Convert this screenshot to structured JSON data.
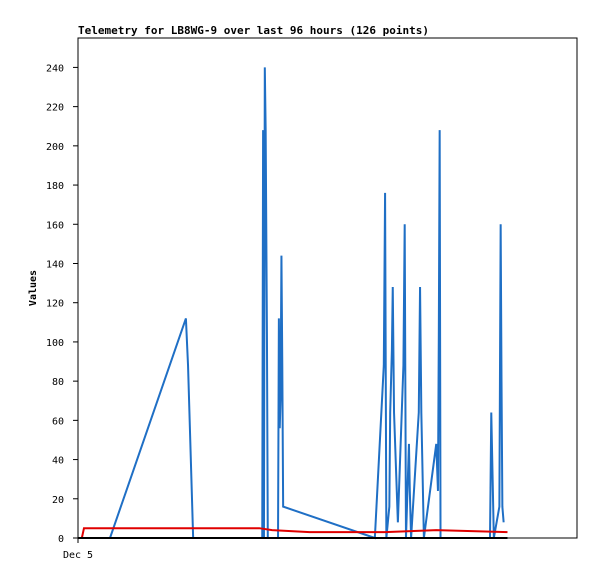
{
  "chart_data": {
    "type": "line",
    "title": "Telemetry for LB8WG-9 over last 96 hours (126 points)",
    "y_label": "Values",
    "xlim": [
      0,
      117
    ],
    "xticks": [
      {
        "value": 0,
        "label": "Dec 5"
      }
    ],
    "ylim": [
      0,
      255
    ],
    "yticks": [
      0,
      20,
      40,
      60,
      80,
      100,
      120,
      140,
      160,
      180,
      200,
      220,
      240
    ],
    "series": [
      {
        "color": "#1f6fc5",
        "x": [
          7.5,
          25.3,
          25.8,
          27.0,
          43.2,
          43.4,
          43.6,
          43.8,
          44.0,
          44.3,
          44.5,
          46.9,
          47.1,
          47.3,
          47.5,
          47.7,
          47.9,
          48.1,
          69.6,
          71.7,
          72.0,
          72.3,
          73.0,
          73.2,
          73.6,
          73.8,
          74.1,
          75.0,
          76.3,
          76.6,
          76.9,
          77.6,
          77.8,
          78.1,
          79.9,
          80.2,
          80.5,
          81.1,
          84.0,
          84.4,
          84.6,
          84.8,
          85.0,
          96.6,
          96.9,
          97.2,
          97.5,
          98.8,
          99.1,
          99.3,
          99.5,
          99.8
        ],
        "values": [
          0,
          112,
          88,
          0,
          0,
          208,
          0,
          240,
          208,
          104,
          0,
          0,
          112,
          56,
          72,
          144,
          88,
          16,
          0,
          88,
          176,
          0,
          16,
          64,
          96,
          128,
          64,
          8,
          88,
          160,
          0,
          48,
          24,
          0,
          64,
          128,
          64,
          0,
          48,
          24,
          104,
          208,
          0,
          0,
          64,
          32,
          0,
          16,
          160,
          80,
          16,
          8
        ]
      },
      {
        "color": "#e00000",
        "x": [
          0.9,
          1.4,
          42.5,
          45.5,
          54.3,
          72.0,
          84.0,
          100.7
        ],
        "values": [
          0,
          5,
          5,
          4,
          3,
          3,
          4,
          3
        ]
      },
      {
        "color": "#000000",
        "x": [
          0,
          100.7
        ],
        "values": [
          0,
          0
        ]
      }
    ]
  }
}
